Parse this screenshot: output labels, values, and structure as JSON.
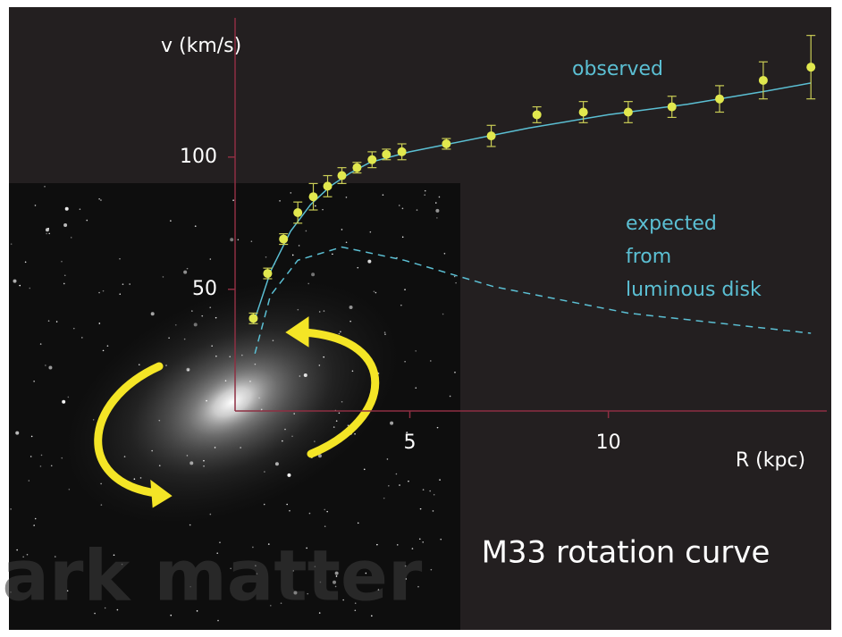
{
  "chart_data": {
    "type": "scatter",
    "title": "M33 rotation curve",
    "x_label": "R (kpc)",
    "y_label": "v (km/s)",
    "watermark": "Dark matter",
    "xlim": [
      0.6,
      15.5
    ],
    "ylim": [
      4,
      150
    ],
    "xticks": [
      5,
      10
    ],
    "yticks": [
      50,
      100
    ],
    "axis_color": "#8e2f42",
    "series": [
      {
        "type": "scatter",
        "color": "#e1e84e",
        "error_color": "#c9cc55",
        "x": [
          1.06,
          1.42,
          1.82,
          2.18,
          2.57,
          2.93,
          3.29,
          3.67,
          4.05,
          4.41,
          4.8,
          5.92,
          7.05,
          8.2,
          9.37,
          10.5,
          11.6,
          12.8,
          13.9,
          15.1
        ],
        "values": [
          39,
          56,
          69,
          79,
          85,
          89,
          93,
          96,
          99,
          101,
          102,
          105,
          108,
          116,
          117,
          117,
          119,
          122,
          129,
          134
        ],
        "errors": [
          2,
          2,
          2,
          4,
          5,
          4,
          3,
          2,
          3,
          2,
          3,
          2,
          4,
          3,
          4,
          4,
          4,
          5,
          7,
          12
        ]
      },
      {
        "type": "line",
        "name": "observed",
        "color": "#5bbfd3",
        "dashed": false,
        "x": [
          1.06,
          1.5,
          2,
          2.5,
          3,
          3.5,
          4,
          5,
          6,
          8,
          10,
          12,
          14,
          15.1
        ],
        "values": [
          37,
          57,
          72,
          82,
          89,
          94,
          98,
          102,
          105,
          111,
          116,
          120,
          125,
          128
        ]
      },
      {
        "type": "line",
        "name_lines": [
          "expected",
          "from",
          "luminous disk"
        ],
        "color": "#5bbfd3",
        "dashed": true,
        "x": [
          1.1,
          1.49,
          2.18,
          3.29,
          4.86,
          7.12,
          10.5,
          15.1
        ],
        "values": [
          25.7,
          47.6,
          61,
          66,
          61,
          51,
          41,
          33.4
        ]
      }
    ]
  }
}
